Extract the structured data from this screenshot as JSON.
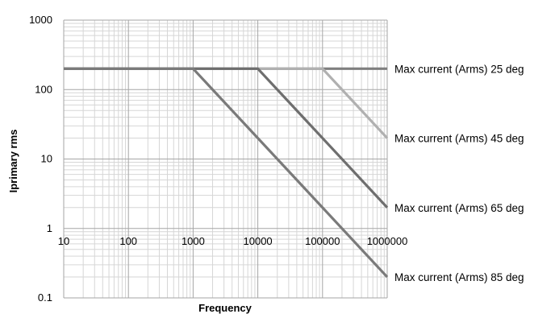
{
  "chart_data": {
    "type": "line",
    "title": "",
    "xlabel": "Frequency",
    "ylabel": "Iprimary rms",
    "x_scale": "log",
    "y_scale": "log",
    "xlim": [
      10,
      1000000
    ],
    "ylim": [
      0.1,
      1000
    ],
    "grid": true,
    "legend": "right",
    "x_ticks": [
      "10",
      "100",
      "1000",
      "10000",
      "100000",
      "1000000"
    ],
    "y_ticks": [
      "0.1",
      "1",
      "10",
      "100",
      "1000"
    ],
    "series": [
      {
        "name": "Max current (Arms) 25 deg",
        "color": "#7f7f7f",
        "points": [
          [
            10,
            200
          ],
          [
            1000000,
            200
          ]
        ]
      },
      {
        "name": "Max current (Arms) 45 deg",
        "color": "#b0b0b0",
        "points": [
          [
            10,
            200
          ],
          [
            100000,
            200
          ],
          [
            1000000,
            20
          ]
        ]
      },
      {
        "name": "Max current (Arms) 65 deg",
        "color": "#6e6e6e",
        "points": [
          [
            10,
            200
          ],
          [
            10000,
            200
          ],
          [
            1000000,
            2
          ]
        ]
      },
      {
        "name": "Max current (Arms) 85 deg",
        "color": "#7a7a7a",
        "points": [
          [
            10,
            200
          ],
          [
            1000,
            200
          ],
          [
            1000000,
            0.2
          ]
        ]
      }
    ]
  }
}
